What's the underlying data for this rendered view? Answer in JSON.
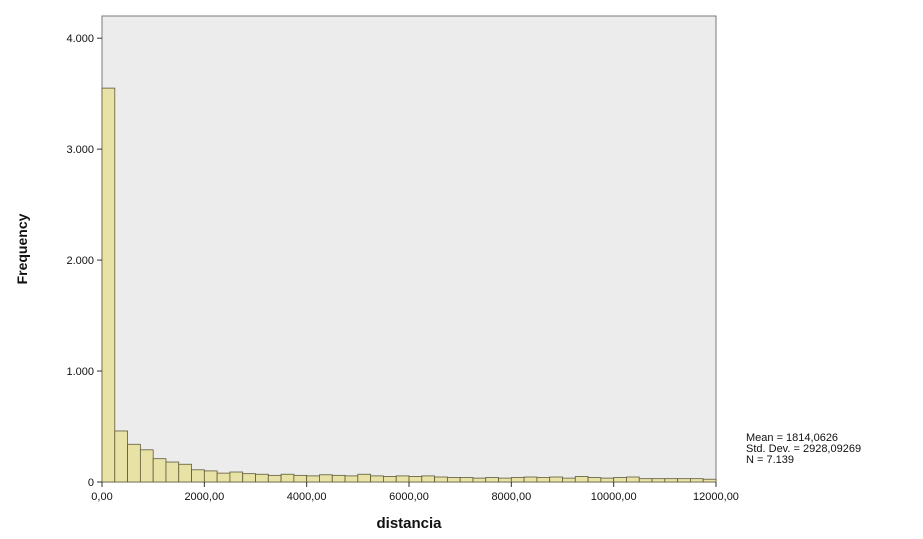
{
  "chart_data": {
    "type": "bar",
    "xlabel": "distancia",
    "ylabel": "Frequency",
    "xlim": [
      0,
      12000
    ],
    "ylim": [
      0,
      4200
    ],
    "bin_width": 250,
    "x_ticks": [
      {
        "value": 0,
        "label": "0,00"
      },
      {
        "value": 2000,
        "label": "2000,00"
      },
      {
        "value": 4000,
        "label": "4000,00"
      },
      {
        "value": 6000,
        "label": "6000,00"
      },
      {
        "value": 8000,
        "label": "8000,00"
      },
      {
        "value": 10000,
        "label": "10000,00"
      },
      {
        "value": 12000,
        "label": "12000,00"
      }
    ],
    "y_ticks": [
      {
        "value": 0,
        "label": "0"
      },
      {
        "value": 1000,
        "label": "1.000"
      },
      {
        "value": 2000,
        "label": "2.000"
      },
      {
        "value": 3000,
        "label": "3.000"
      },
      {
        "value": 4000,
        "label": "4.000"
      }
    ],
    "values": [
      3550,
      460,
      340,
      290,
      210,
      180,
      160,
      110,
      100,
      80,
      90,
      75,
      70,
      60,
      70,
      60,
      55,
      65,
      60,
      55,
      70,
      55,
      50,
      55,
      50,
      55,
      45,
      40,
      40,
      35,
      40,
      35,
      40,
      45,
      40,
      45,
      35,
      50,
      40,
      35,
      40,
      45,
      30,
      30,
      30,
      30,
      30,
      25
    ],
    "stats": {
      "mean": "Mean = 1814,0626",
      "std_dev": "Std. Dev. = 2928,09269",
      "n": "N = 7.139"
    },
    "colors": {
      "bar_fill": "#e8e2a6",
      "bar_stroke": "#5e5a3a",
      "plot_bg": "#ececec",
      "frame": "#7a7a7a"
    },
    "grid": false,
    "legend": "none"
  }
}
